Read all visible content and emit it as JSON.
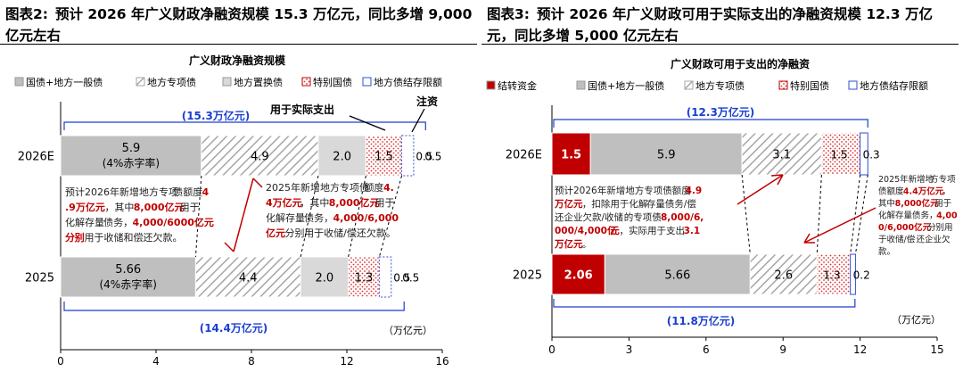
{
  "charts": [
    {
      "figure_tag": "图表2:",
      "figure_title": "预计 2026 年广义财政净融资规模 15.3 万亿元，同比多增 9,000 亿元左右",
      "source_note": ""
    },
    {
      "figure_tag": "图表3:",
      "figure_title": "预计 2026 年广义财政可用于实际支出的净融资规模 12.3 万亿元，同比多增 5,000 亿元左右",
      "source_note": ""
    }
  ],
  "chart_data": [
    {
      "type": "bar",
      "stacked": true,
      "orientation": "horizontal",
      "title": "广义财政净融资规模",
      "categories": [
        "2026E",
        "2025"
      ],
      "series": [
        {
          "name": "国债+地方一般债",
          "values": [
            5.9,
            5.66
          ],
          "labels": [
            "5.9\n(4%赤字率)",
            "5.66\n(4%赤字率)"
          ],
          "fill": "#bfbfbf",
          "pattern": "solid"
        },
        {
          "name": "地方专项债",
          "values": [
            4.9,
            4.4
          ],
          "labels": [
            "4.9",
            "4.4"
          ],
          "fill": "#ffffff",
          "pattern": "diag"
        },
        {
          "name": "地方置换债",
          "values": [
            2.0,
            2.0
          ],
          "labels": [
            "2.0",
            "2.0"
          ],
          "fill": "#d9d9d9",
          "pattern": "solid"
        },
        {
          "name": "特别国债",
          "values": [
            1.5,
            1.3
          ],
          "labels": [
            "1.5",
            "1.3"
          ],
          "fill": "#ffffff",
          "pattern": "reddots"
        },
        {
          "name": "地方债结存限额",
          "values": [
            0.5,
            0.5
          ],
          "labels": [
            "0.5",
            "0.5"
          ],
          "fill": "#ffffff",
          "pattern": "blueedge"
        }
      ],
      "extra_labels": [
        "0.5",
        "0.5"
      ],
      "xlim": [
        0,
        16
      ],
      "xticks": [
        0,
        4,
        8,
        12,
        16
      ],
      "xunit": "（万亿元）",
      "legend_position": "top",
      "totals": [
        "(15.3万亿元)",
        "(14.4万亿元)"
      ],
      "callouts": {
        "actual_spend": "用于实际支出",
        "capital": "注资"
      },
      "annotations": [
        {
          "runs": [
            {
              "t": "预计2026年新增地方专项",
              "red": false
            },
            {
              "t": "债额度",
              "red": false
            },
            {
              "t": "4.9万亿元",
              "red": true
            },
            {
              "t": "，其中",
              "red": false
            },
            {
              "t": "8,000亿元",
              "red": true
            },
            {
              "t": "用于化解存量",
              "red": false
            },
            {
              "t": "债务，",
              "red": false
            },
            {
              "t": "4,000/6000亿元分",
              "red": true
            },
            {
              "t": "别",
              "red": true
            },
            {
              "t": "用于收储和偿还欠款。",
              "red": false
            }
          ]
        },
        {
          "runs": [
            {
              "t": "2025年新增地方专项债",
              "red": false
            },
            {
              "t": "额度",
              "red": false
            },
            {
              "t": "4.4万亿元",
              "red": true
            },
            {
              "t": "，其中",
              "red": false
            },
            {
              "t": "8,000亿元",
              "red": true
            },
            {
              "t": "用于化解存量",
              "red": false
            },
            {
              "t": "债务，",
              "red": false
            },
            {
              "t": "4,000/6,000亿元",
              "red": true
            },
            {
              "t": "分别",
              "red": false
            },
            {
              "t": "用于收储/偿还欠款。",
              "red": false
            }
          ]
        }
      ]
    },
    {
      "type": "bar",
      "stacked": true,
      "orientation": "horizontal",
      "title": "广义财政可用于支出的净融资",
      "categories": [
        "2026E",
        "2025"
      ],
      "series": [
        {
          "name": "结转资金",
          "values": [
            1.5,
            2.06
          ],
          "labels": [
            "1.5",
            "2.06"
          ],
          "fill": "#c00000",
          "pattern": "solid"
        },
        {
          "name": "国债+地方一般债",
          "values": [
            5.9,
            5.66
          ],
          "labels": [
            "5.9",
            "5.66"
          ],
          "fill": "#bfbfbf",
          "pattern": "solid"
        },
        {
          "name": "地方专项债",
          "values": [
            3.1,
            2.6
          ],
          "labels": [
            "3.1",
            "2.6"
          ],
          "fill": "#ffffff",
          "pattern": "diag"
        },
        {
          "name": "特别国债",
          "values": [
            1.5,
            1.3
          ],
          "labels": [
            "1.5",
            "1.3"
          ],
          "fill": "#ffffff",
          "pattern": "reddots"
        },
        {
          "name": "地方债结存限额",
          "values": [
            0.3,
            0.2
          ],
          "labels": [
            "0.3",
            "0.2"
          ],
          "fill": "#ffffff",
          "pattern": "blueedge"
        }
      ],
      "xlim": [
        0,
        15
      ],
      "xticks": [
        0,
        3,
        6,
        9,
        12,
        15
      ],
      "xunit": "（万亿元）",
      "legend_position": "top",
      "totals": [
        "(12.3万亿元)",
        "(11.8万亿元)"
      ],
      "annotations": [
        {
          "runs": [
            {
              "t": "预计2026年新增地方专项债额度",
              "red": false
            },
            {
              "t": "4.9万亿元",
              "red": true
            },
            {
              "t": "，扣除用于化解",
              "red": false
            },
            {
              "t": "存量债务/偿还企业欠款/收储",
              "red": false
            },
            {
              "t": "的专项债",
              "red": false
            },
            {
              "t": "8,000/6,000/4,000亿",
              "red": true
            },
            {
              "t": "元",
              "red": true
            },
            {
              "t": "，实际用于支出",
              "red": false
            },
            {
              "t": "3.1万亿元",
              "red": true
            },
            {
              "t": "。",
              "red": false
            }
          ]
        },
        {
          "runs": [
            {
              "t": "2025年新增地",
              "red": false
            },
            {
              "t": "方专项债额度",
              "red": false
            },
            {
              "t": "4.4万亿元",
              "red": true
            },
            {
              "t": "，其",
              "red": false
            },
            {
              "t": "中",
              "red": false
            },
            {
              "t": "8,000亿元",
              "red": true
            },
            {
              "t": "用",
              "red": false
            },
            {
              "t": "于化解存量债务，",
              "red": false
            },
            {
              "t": "4,000/6,000亿元",
              "red": true
            },
            {
              "t": "分",
              "red": false
            },
            {
              "t": "别用于收储/偿",
              "red": false
            },
            {
              "t": "还企业欠款。",
              "red": false
            }
          ]
        }
      ]
    }
  ]
}
